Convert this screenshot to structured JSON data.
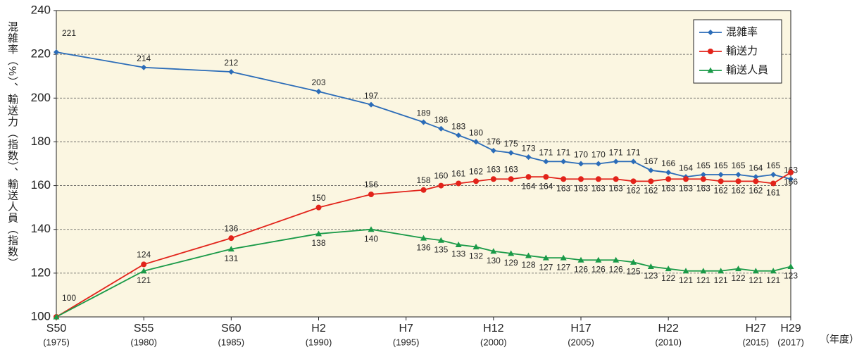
{
  "chart_data": {
    "type": "line",
    "y_label": "混雑率（%）、輸送力（指数）、輸送人員（指数）",
    "x_label": "（年度）",
    "x": [
      1975,
      1980,
      1985,
      1990,
      1993,
      1996,
      1997,
      1998,
      1999,
      2000,
      2001,
      2002,
      2003,
      2004,
      2005,
      2006,
      2007,
      2008,
      2009,
      2010,
      2011,
      2012,
      2013,
      2014,
      2015,
      2016,
      2017
    ],
    "xlim": [
      1975,
      2017
    ],
    "xticks": [
      {
        "value": 1975,
        "label": "S50"
      },
      {
        "value": 1980,
        "label": "S55"
      },
      {
        "value": 1985,
        "label": "S60"
      },
      {
        "value": 1990,
        "label": "H2"
      },
      {
        "value": 1995,
        "label": "H7"
      },
      {
        "value": 2000,
        "label": "H12"
      },
      {
        "value": 2005,
        "label": "H17"
      },
      {
        "value": 2010,
        "label": "H22"
      },
      {
        "value": 2015,
        "label": "H27"
      },
      {
        "value": 2017,
        "label": "H29"
      }
    ],
    "xtick_sublabels": [
      "(1975)",
      "(1980)",
      "(1985)",
      "(1990)",
      "(1995)",
      "(2000)",
      "(2005)",
      "(2010)",
      "(2015)",
      "(2017)"
    ],
    "ylim": [
      100,
      240
    ],
    "yticks": [
      100,
      120,
      140,
      160,
      180,
      200,
      220,
      240
    ],
    "grid": true,
    "legend": "upper right",
    "series": [
      {
        "name": "混雑率",
        "color": "#2b6cb8",
        "marker": "diamond",
        "values": [
          221,
          214,
          212,
          203,
          197,
          189,
          186,
          183,
          180,
          176,
          175,
          173,
          171,
          171,
          170,
          170,
          171,
          171,
          167,
          166,
          164,
          165,
          165,
          165,
          164,
          165,
          163
        ]
      },
      {
        "name": "輸送力",
        "color": "#e2231a",
        "marker": "circle",
        "values": [
          100,
          124,
          136,
          150,
          156,
          158,
          160,
          161,
          162,
          163,
          163,
          164,
          164,
          163,
          163,
          163,
          163,
          162,
          162,
          163,
          163,
          163,
          162,
          162,
          162,
          161,
          166
        ]
      },
      {
        "name": "輸送人員",
        "color": "#1a9a48",
        "marker": "triangle",
        "values": [
          100,
          121,
          131,
          138,
          140,
          136,
          135,
          133,
          132,
          130,
          129,
          128,
          127,
          127,
          126,
          126,
          126,
          125,
          123,
          122,
          121,
          121,
          121,
          122,
          121,
          121,
          123
        ],
        "value_labels": [
          null,
          "121",
          "131",
          "138",
          "140",
          "136",
          "135",
          "133",
          "132",
          "130",
          "129",
          "128",
          "127",
          "127",
          "126",
          "126",
          "126",
          "125",
          "123",
          "122",
          "121",
          "121",
          "121",
          "122",
          "121",
          "121",
          "123"
        ]
      }
    ]
  }
}
